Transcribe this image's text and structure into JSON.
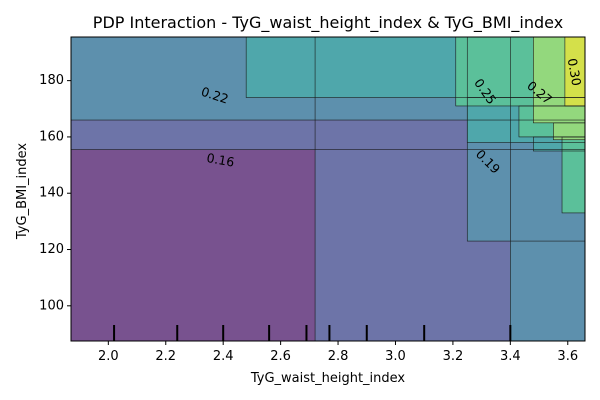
{
  "chart_data": {
    "type": "heatmap",
    "title": "PDP Interaction - TyG_waist_height_index & TyG_BMI_index",
    "xlabel": "TyG_waist_height_index",
    "ylabel": "TyG_BMI_index",
    "xlim": [
      1.87,
      3.66
    ],
    "ylim": [
      87.5,
      195.5
    ],
    "x_ticks": [
      "2.0",
      "2.2",
      "2.4",
      "2.6",
      "2.8",
      "3.0",
      "3.2",
      "3.4",
      "3.6"
    ],
    "x_tick_values": [
      2.0,
      2.2,
      2.4,
      2.6,
      2.8,
      3.0,
      3.2,
      3.4,
      3.6
    ],
    "y_ticks": [
      "100",
      "120",
      "140",
      "160",
      "180"
    ],
    "y_tick_values": [
      100,
      120,
      140,
      160,
      180
    ],
    "contour_levels": [
      "0.16",
      "0.19",
      "0.22",
      "0.25",
      "0.27",
      "0.30"
    ],
    "level_values": [
      0.16,
      0.19,
      0.22,
      0.25,
      0.27,
      0.3
    ],
    "level_colors": [
      "#6d74a8",
      "#5d90ad",
      "#4fa7ab",
      "#5bc09a",
      "#93d87d",
      "#d4e04a"
    ],
    "base_color": "#78528f",
    "regions": [
      {
        "level": 0,
        "x": [
          1.87,
          3.66
        ],
        "y": [
          87.5,
          195.5
        ]
      },
      {
        "level": 1,
        "x": [
          2.72,
          3.66
        ],
        "y": [
          87.5,
          195.5
        ]
      },
      {
        "level": 1,
        "x": [
          1.87,
          3.66
        ],
        "y": [
          155.5,
          195.5
        ]
      },
      {
        "level": 2,
        "x": [
          3.4,
          3.66
        ],
        "y": [
          87.5,
          195.5
        ]
      },
      {
        "level": 2,
        "x": [
          3.25,
          3.66
        ],
        "y": [
          123,
          195.5
        ]
      },
      {
        "level": 2,
        "x": [
          1.87,
          3.66
        ],
        "y": [
          166,
          195.5
        ]
      },
      {
        "level": 3,
        "x": [
          2.48,
          3.66
        ],
        "y": [
          174,
          195.5
        ]
      },
      {
        "level": 3,
        "x": [
          3.25,
          3.66
        ],
        "y": [
          158,
          174
        ]
      },
      {
        "level": 3,
        "x": [
          3.48,
          3.66
        ],
        "y": [
          155,
          160
        ]
      },
      {
        "level": 4,
        "x": [
          3.21,
          3.66
        ],
        "y": [
          171,
          195.5
        ]
      },
      {
        "level": 4,
        "x": [
          3.43,
          3.66
        ],
        "y": [
          160,
          171
        ]
      },
      {
        "level": 4,
        "x": [
          3.58,
          3.66
        ],
        "y": [
          133,
          160
        ]
      },
      {
        "level": 5,
        "x": [
          3.48,
          3.66
        ],
        "y": [
          165,
          195.5
        ]
      },
      {
        "level": 5,
        "x": [
          3.55,
          3.66
        ],
        "y": [
          159,
          165
        ]
      },
      {
        "level": 6,
        "x": [
          3.59,
          3.66
        ],
        "y": [
          171,
          195.5
        ]
      }
    ],
    "contour_annotations": [
      {
        "text": "0.16",
        "x": 2.39,
        "y": 151.5,
        "angle": 10
      },
      {
        "text": "0.19",
        "x": 3.32,
        "y": 151,
        "angle": 45
      },
      {
        "text": "0.22",
        "x": 2.37,
        "y": 174.5,
        "angle": 18
      },
      {
        "text": "0.25",
        "x": 3.31,
        "y": 176,
        "angle": 55
      },
      {
        "text": "0.27",
        "x": 3.5,
        "y": 175.5,
        "angle": 40
      },
      {
        "text": "0.30",
        "x": 3.62,
        "y": 183,
        "angle": 80
      }
    ],
    "rug_x": [
      2.02,
      2.24,
      2.4,
      2.56,
      2.69,
      2.77,
      2.9,
      3.1,
      3.4
    ]
  }
}
